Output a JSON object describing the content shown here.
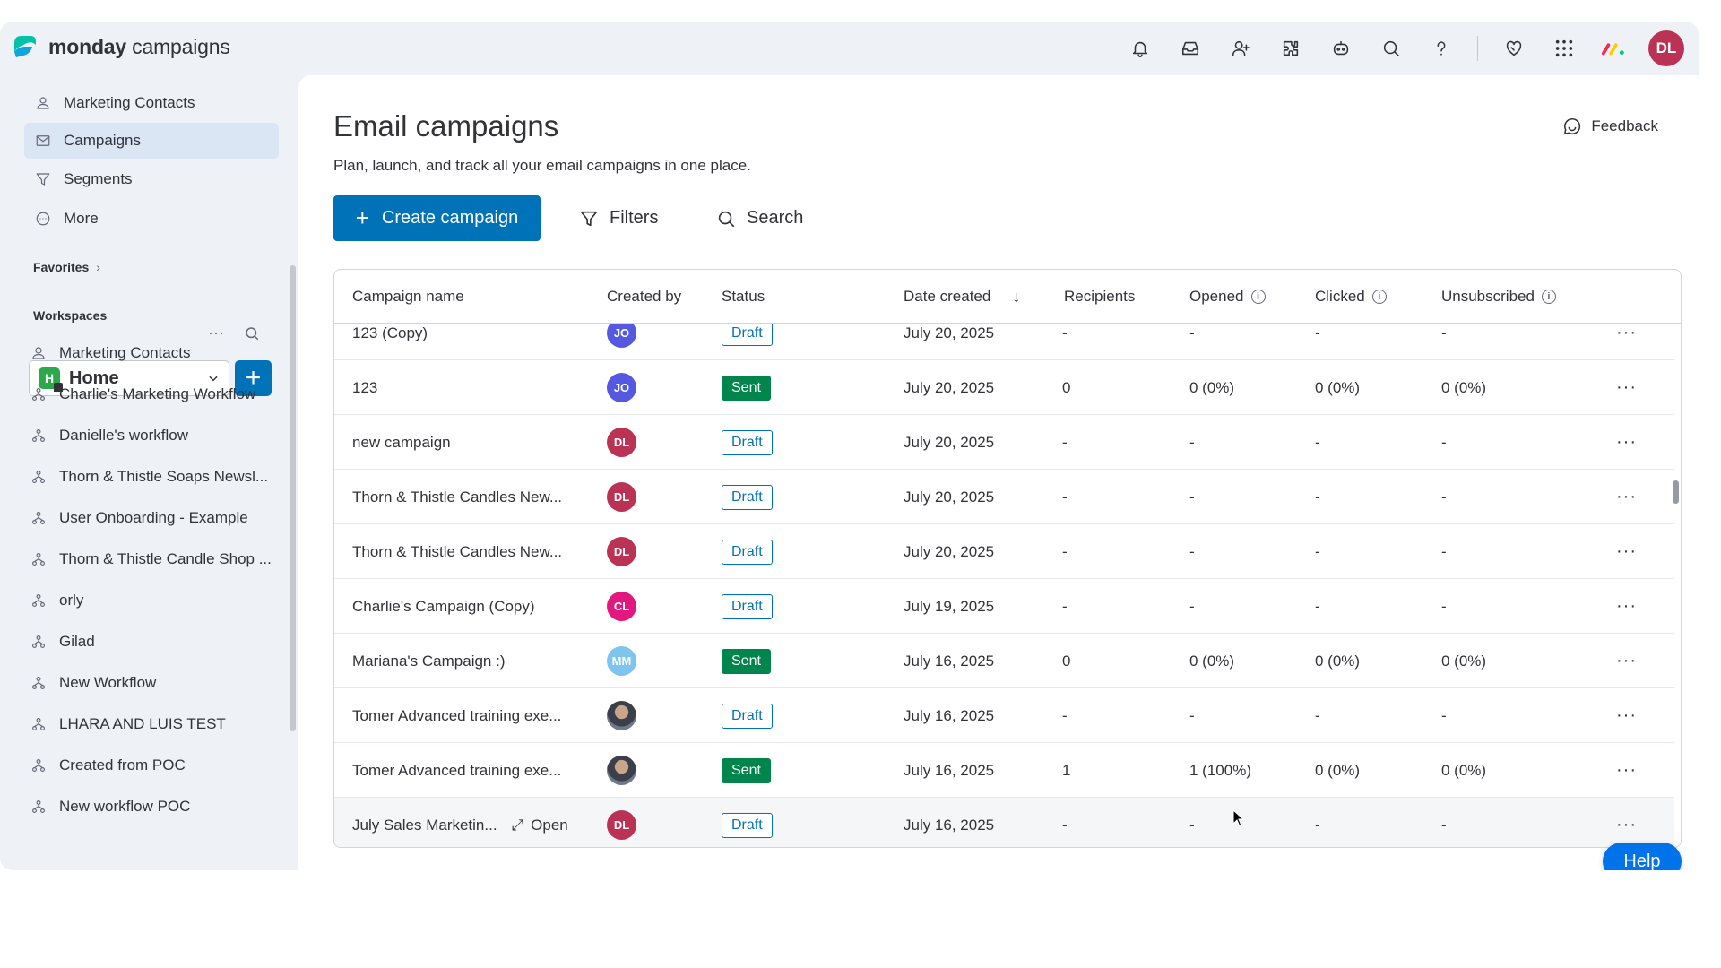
{
  "brand": {
    "name_bold": "monday",
    "name_rest": " campaigns"
  },
  "topbar_icons": [
    "bell-icon",
    "inbox-icon",
    "invite-user-icon",
    "integrations-icon",
    "ai-bot-icon",
    "search-icon",
    "help-icon",
    "heart-icon",
    "apps-grid-icon",
    "monday-logo-icon"
  ],
  "user": {
    "initials": "DL",
    "color": "#bb3354"
  },
  "sidebar": {
    "nav": [
      {
        "label": "Marketing Contacts",
        "icon": "contacts-icon",
        "active": false
      },
      {
        "label": "Campaigns",
        "icon": "mail-icon",
        "active": true
      },
      {
        "label": "Segments",
        "icon": "filter-icon",
        "active": false
      },
      {
        "label": "More",
        "icon": "more-circle-icon",
        "active": false
      }
    ],
    "favorites_label": "Favorites",
    "workspaces_label": "Workspaces",
    "workspace": {
      "badge": "H",
      "name": "Home"
    },
    "items": [
      {
        "label": "Marketing Contacts",
        "icon": "contacts-icon"
      },
      {
        "label": "Charlie's Marketing Workflow",
        "icon": "workflow-icon"
      },
      {
        "label": "Danielle's workflow",
        "icon": "workflow-icon"
      },
      {
        "label": "Thorn & Thistle Soaps Newsl...",
        "icon": "workflow-icon"
      },
      {
        "label": "User Onboarding - Example",
        "icon": "workflow-icon"
      },
      {
        "label": "Thorn & Thistle Candle Shop ...",
        "icon": "workflow-icon"
      },
      {
        "label": "orly",
        "icon": "workflow-icon"
      },
      {
        "label": "Gilad",
        "icon": "workflow-icon"
      },
      {
        "label": "New Workflow",
        "icon": "workflow-icon"
      },
      {
        "label": "LHARA AND LUIS TEST",
        "icon": "workflow-icon"
      },
      {
        "label": "Created from POC",
        "icon": "workflow-icon"
      },
      {
        "label": "New workflow POC",
        "icon": "workflow-icon"
      }
    ]
  },
  "main": {
    "title": "Email campaigns",
    "subtitle": "Plan, launch, and track all your email campaigns in one place.",
    "feedback_label": "Feedback",
    "create_label": "Create campaign",
    "filters_label": "Filters",
    "search_label": "Search"
  },
  "table": {
    "columns": {
      "name": "Campaign name",
      "created_by": "Created by",
      "status": "Status",
      "date": "Date created",
      "recipients": "Recipients",
      "opened": "Opened",
      "clicked": "Clicked",
      "unsubscribed": "Unsubscribed"
    },
    "rows": [
      {
        "name": "123 (Copy)",
        "creator": "JO",
        "creator_color": "#5559df",
        "status": "Draft",
        "date": "July 20, 2025",
        "recipients": "-",
        "opened": "-",
        "clicked": "-",
        "unsubscribed": "-"
      },
      {
        "name": "123",
        "creator": "JO",
        "creator_color": "#5559df",
        "status": "Sent",
        "date": "July 20, 2025",
        "recipients": "0",
        "opened": "0 (0%)",
        "clicked": "0 (0%)",
        "unsubscribed": "0 (0%)"
      },
      {
        "name": "new campaign",
        "creator": "DL",
        "creator_color": "#bb3354",
        "status": "Draft",
        "date": "July 20, 2025",
        "recipients": "-",
        "opened": "-",
        "clicked": "-",
        "unsubscribed": "-"
      },
      {
        "name": "Thorn & Thistle Candles New...",
        "creator": "DL",
        "creator_color": "#bb3354",
        "status": "Draft",
        "date": "July 20, 2025",
        "recipients": "-",
        "opened": "-",
        "clicked": "-",
        "unsubscribed": "-"
      },
      {
        "name": "Thorn & Thistle Candles New...",
        "creator": "DL",
        "creator_color": "#bb3354",
        "status": "Draft",
        "date": "July 20, 2025",
        "recipients": "-",
        "opened": "-",
        "clicked": "-",
        "unsubscribed": "-"
      },
      {
        "name": "Charlie's Campaign (Copy)",
        "creator": "CL",
        "creator_color": "#e2187e",
        "status": "Draft",
        "date": "July 19, 2025",
        "recipients": "-",
        "opened": "-",
        "clicked": "-",
        "unsubscribed": "-"
      },
      {
        "name": "Mariana's Campaign :)",
        "creator": "MM",
        "creator_color": "#7ec4ee",
        "status": "Sent",
        "date": "July 16, 2025",
        "recipients": "0",
        "opened": "0 (0%)",
        "clicked": "0 (0%)",
        "unsubscribed": "0 (0%)"
      },
      {
        "name": "Tomer Advanced training exe...",
        "creator": "",
        "creator_color": "photo",
        "status": "Draft",
        "date": "July 16, 2025",
        "recipients": "-",
        "opened": "-",
        "clicked": "-",
        "unsubscribed": "-"
      },
      {
        "name": "Tomer Advanced training exe...",
        "creator": "",
        "creator_color": "photo",
        "status": "Sent",
        "date": "July 16, 2025",
        "recipients": "1",
        "opened": "1 (100%)",
        "clicked": "0 (0%)",
        "unsubscribed": "0 (0%)"
      },
      {
        "name": "July Sales Marketin...",
        "open_label": "Open",
        "creator": "DL",
        "creator_color": "#bb3354",
        "status": "Draft",
        "date": "July 16, 2025",
        "recipients": "-",
        "opened": "-",
        "clicked": "-",
        "unsubscribed": "-"
      }
    ]
  },
  "help_label": "Help",
  "colors": {
    "primary": "#0073b8",
    "sent": "#00854d",
    "app_bg": "#eef1f5"
  }
}
